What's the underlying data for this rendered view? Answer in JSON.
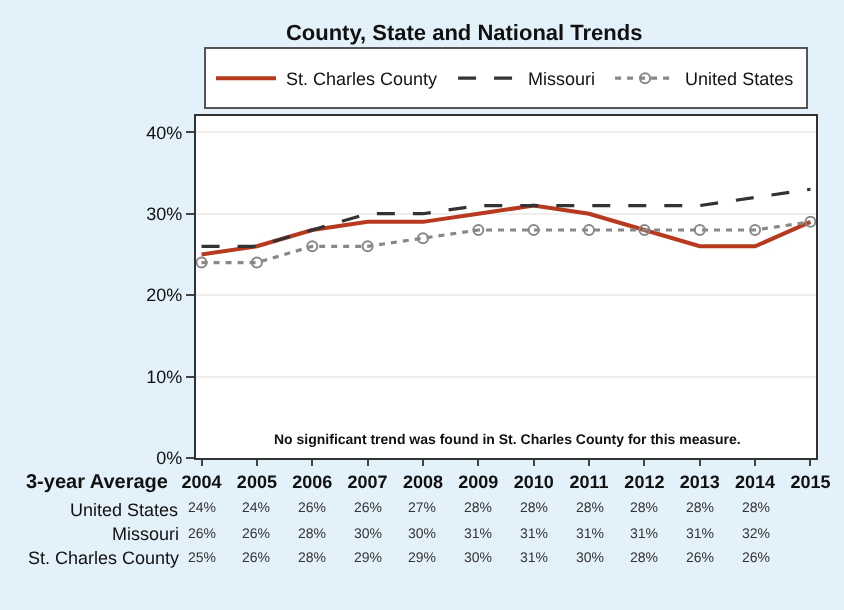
{
  "chart_data": {
    "type": "line",
    "title": "County, State and National Trends",
    "categories": [
      "2004",
      "2005",
      "2006",
      "2007",
      "2008",
      "2009",
      "2010",
      "2011",
      "2012",
      "2013",
      "2014",
      "2015"
    ],
    "series": [
      {
        "name": "St. Charles County",
        "color": "#b83a1e",
        "line_style": "solid",
        "marker": "none",
        "values": [
          25,
          26,
          28,
          29,
          29,
          30,
          31,
          30,
          28,
          26,
          26,
          29
        ],
        "value_labels": [
          "25%",
          "26%",
          "28%",
          "29%",
          "29%",
          "30%",
          "31%",
          "30%",
          "28%",
          "26%",
          "26%",
          null
        ]
      },
      {
        "name": "Missouri",
        "color": "#333333",
        "line_style": "dashed",
        "marker": "none",
        "values": [
          26,
          26,
          28,
          30,
          30,
          31,
          31,
          31,
          31,
          31,
          32,
          33
        ],
        "value_labels": [
          "26%",
          "26%",
          "28%",
          "30%",
          "30%",
          "31%",
          "31%",
          "31%",
          "31%",
          "31%",
          "32%",
          null
        ]
      },
      {
        "name": "United States",
        "color": "#888888",
        "line_style": "dotted",
        "marker": "circle",
        "values": [
          24,
          24,
          26,
          26,
          27,
          28,
          28,
          28,
          28,
          28,
          28,
          29
        ],
        "value_labels": [
          "24%",
          "24%",
          "26%",
          "26%",
          "27%",
          "28%",
          "28%",
          "28%",
          "28%",
          "28%",
          "28%",
          null
        ]
      }
    ],
    "xlabel": "3-year Average",
    "ylim": [
      0,
      42
    ],
    "yticks": [
      {
        "value": 0,
        "label": "0%"
      },
      {
        "value": 10,
        "label": "10%"
      },
      {
        "value": 20,
        "label": "20%"
      },
      {
        "value": 30,
        "label": "30%"
      },
      {
        "value": 40,
        "label": "40%"
      }
    ],
    "grid": "y",
    "legend": "top",
    "annotations": [
      "No significant trend was found in St. Charles County for this measure."
    ]
  }
}
